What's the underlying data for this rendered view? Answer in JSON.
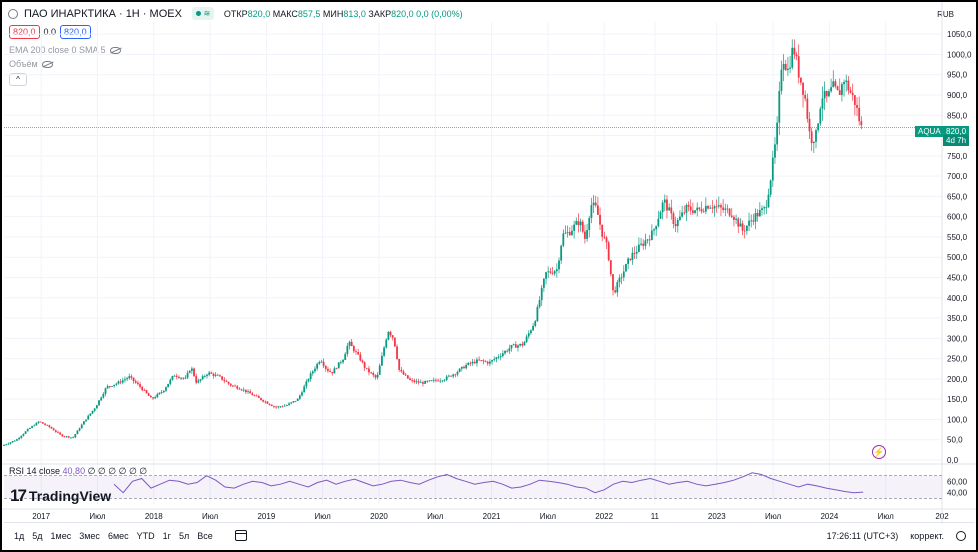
{
  "header": {
    "symbol_title": "ПАО ИНАРКТИКА · 1Н · MOEX",
    "status_symbol": "≋",
    "ohlc": [
      {
        "label": "ОТКР",
        "value": "820,0"
      },
      {
        "label": "МАКС",
        "value": "857,5"
      },
      {
        "label": "МИН",
        "value": "813,0"
      },
      {
        "label": "ЗАКР",
        "value": "820,0"
      },
      {
        "label": "",
        "value": "0,0 (0,00%)"
      }
    ],
    "sell_price": "820,0",
    "spread": "0.0",
    "buy_price": "820,0"
  },
  "indicators": {
    "ema": "EMA 200 close 0 SMA 5",
    "volume": "Объём",
    "collapse": "^"
  },
  "currency": "RUB",
  "price_tag": {
    "symbol": "AQUA",
    "price": "820,0",
    "countdown": "4d 7h"
  },
  "rsi": {
    "label": "RSI 14 close",
    "value": "40,80",
    "extras": "∅ ∅ ∅ ∅ ∅ ∅"
  },
  "brand": {
    "mark": "17",
    "word": "TradingView"
  },
  "toolbar": {
    "timeframes": [
      "1д",
      "5д",
      "1мес",
      "3мес",
      "6мес",
      "YTD",
      "1г",
      "5л",
      "Все"
    ],
    "clock": "17:26:11 (UTC+3)",
    "adjust": "коррект."
  },
  "colors": {
    "up": "#089981",
    "down": "#f23645",
    "rsi": "#7e57c2",
    "grid": "#f0f3fa"
  },
  "chart_data": {
    "type": "candlestick",
    "title": "ПАО ИНАРКТИКА · 1Н · MOEX",
    "y_ticks": [
      0,
      50,
      100,
      150,
      200,
      250,
      300,
      350,
      400,
      450,
      500,
      550,
      600,
      650,
      700,
      750,
      800,
      850,
      900,
      950,
      1000,
      1050
    ],
    "y_tick_labels": [
      "0,0",
      "50,0",
      "100,0",
      "150,0",
      "200,0",
      "250,0",
      "300,0",
      "350,0",
      "400,0",
      "450,0",
      "500,0",
      "550,0",
      "600,0",
      "650,0",
      "700,0",
      "750,0",
      "800,0",
      "850,0",
      "900,0",
      "950,0",
      "1000,0",
      "1050,0"
    ],
    "ylim": [
      0,
      1080
    ],
    "x_tick_labels": [
      "2017",
      "Июл",
      "2018",
      "Июл",
      "2019",
      "Июл",
      "2020",
      "Июл",
      "2021",
      "Июл",
      "2022",
      "11",
      "2023",
      "Июл",
      "2024",
      "Июл",
      "202"
    ],
    "x_tick_dates": [
      2017.0,
      2017.5,
      2018.0,
      2018.5,
      2019.0,
      2019.5,
      2020.0,
      2020.5,
      2021.0,
      2021.5,
      2022.0,
      2022.45,
      2023.0,
      2023.5,
      2024.0,
      2024.5,
      2025.0
    ],
    "xlim": [
      2016.67,
      2025.0
    ],
    "last_price": 820,
    "series": [
      {
        "name": "Цена",
        "points": [
          [
            2016.67,
            35
          ],
          [
            2016.8,
            50
          ],
          [
            2016.9,
            75
          ],
          [
            2017.0,
            95
          ],
          [
            2017.1,
            80
          ],
          [
            2017.2,
            60
          ],
          [
            2017.3,
            55
          ],
          [
            2017.4,
            95
          ],
          [
            2017.5,
            130
          ],
          [
            2017.6,
            180
          ],
          [
            2017.7,
            190
          ],
          [
            2017.8,
            205
          ],
          [
            2017.9,
            180
          ],
          [
            2018.0,
            150
          ],
          [
            2018.1,
            170
          ],
          [
            2018.2,
            210
          ],
          [
            2018.3,
            200
          ],
          [
            2018.35,
            230
          ],
          [
            2018.4,
            190
          ],
          [
            2018.5,
            215
          ],
          [
            2018.6,
            205
          ],
          [
            2018.7,
            185
          ],
          [
            2018.8,
            175
          ],
          [
            2018.9,
            160
          ],
          [
            2019.0,
            145
          ],
          [
            2019.1,
            130
          ],
          [
            2019.2,
            135
          ],
          [
            2019.3,
            150
          ],
          [
            2019.4,
            205
          ],
          [
            2019.5,
            250
          ],
          [
            2019.55,
            225
          ],
          [
            2019.6,
            215
          ],
          [
            2019.7,
            250
          ],
          [
            2019.75,
            290
          ],
          [
            2019.85,
            250
          ],
          [
            2019.9,
            225
          ],
          [
            2020.0,
            200
          ],
          [
            2020.05,
            260
          ],
          [
            2020.1,
            320
          ],
          [
            2020.15,
            300
          ],
          [
            2020.2,
            220
          ],
          [
            2020.3,
            195
          ],
          [
            2020.4,
            190
          ],
          [
            2020.5,
            195
          ],
          [
            2020.6,
            200
          ],
          [
            2020.7,
            215
          ],
          [
            2020.8,
            235
          ],
          [
            2020.9,
            245
          ],
          [
            2021.0,
            240
          ],
          [
            2021.1,
            260
          ],
          [
            2021.2,
            280
          ],
          [
            2021.3,
            285
          ],
          [
            2021.4,
            340
          ],
          [
            2021.5,
            460
          ],
          [
            2021.6,
            470
          ],
          [
            2021.65,
            555
          ],
          [
            2021.7,
            560
          ],
          [
            2021.8,
            590
          ],
          [
            2021.85,
            545
          ],
          [
            2021.9,
            630
          ],
          [
            2021.95,
            620
          ],
          [
            2022.0,
            560
          ],
          [
            2022.05,
            520
          ],
          [
            2022.1,
            410
          ],
          [
            2022.15,
            440
          ],
          [
            2022.25,
            500
          ],
          [
            2022.35,
            530
          ],
          [
            2022.45,
            560
          ],
          [
            2022.55,
            640
          ],
          [
            2022.65,
            580
          ],
          [
            2022.75,
            620
          ],
          [
            2022.85,
            615
          ],
          [
            2022.95,
            630
          ],
          [
            2023.05,
            620
          ],
          [
            2023.15,
            610
          ],
          [
            2023.25,
            565
          ],
          [
            2023.35,
            600
          ],
          [
            2023.45,
            620
          ],
          [
            2023.5,
            700
          ],
          [
            2023.55,
            800
          ],
          [
            2023.6,
            1000
          ],
          [
            2023.65,
            960
          ],
          [
            2023.7,
            1020
          ],
          [
            2023.75,
            950
          ],
          [
            2023.8,
            900
          ],
          [
            2023.85,
            790
          ],
          [
            2023.9,
            800
          ],
          [
            2023.95,
            900
          ],
          [
            2024.0,
            890
          ],
          [
            2024.05,
            920
          ],
          [
            2024.1,
            900
          ],
          [
            2024.15,
            940
          ],
          [
            2024.2,
            910
          ],
          [
            2024.25,
            880
          ],
          [
            2024.3,
            820
          ]
        ]
      }
    ]
  },
  "rsi_data": {
    "levels": [
      70,
      30
    ],
    "values": [
      55,
      40,
      60,
      65,
      48,
      55,
      62,
      60,
      55,
      58,
      70,
      62,
      50,
      48,
      55,
      60,
      58,
      52,
      55,
      60,
      55,
      50,
      58,
      62,
      55,
      60,
      64,
      58,
      52,
      55,
      60,
      62,
      58,
      55,
      62,
      68,
      72,
      65,
      60,
      55,
      58,
      60,
      55,
      48,
      50,
      55,
      62,
      60,
      58,
      55,
      50,
      48,
      40,
      45,
      55,
      60,
      58,
      62,
      65,
      60,
      55,
      58,
      60,
      55,
      52,
      55,
      58,
      62,
      68,
      75,
      72,
      65,
      60,
      55,
      50,
      55,
      52,
      48,
      45,
      42,
      40,
      41
    ]
  }
}
